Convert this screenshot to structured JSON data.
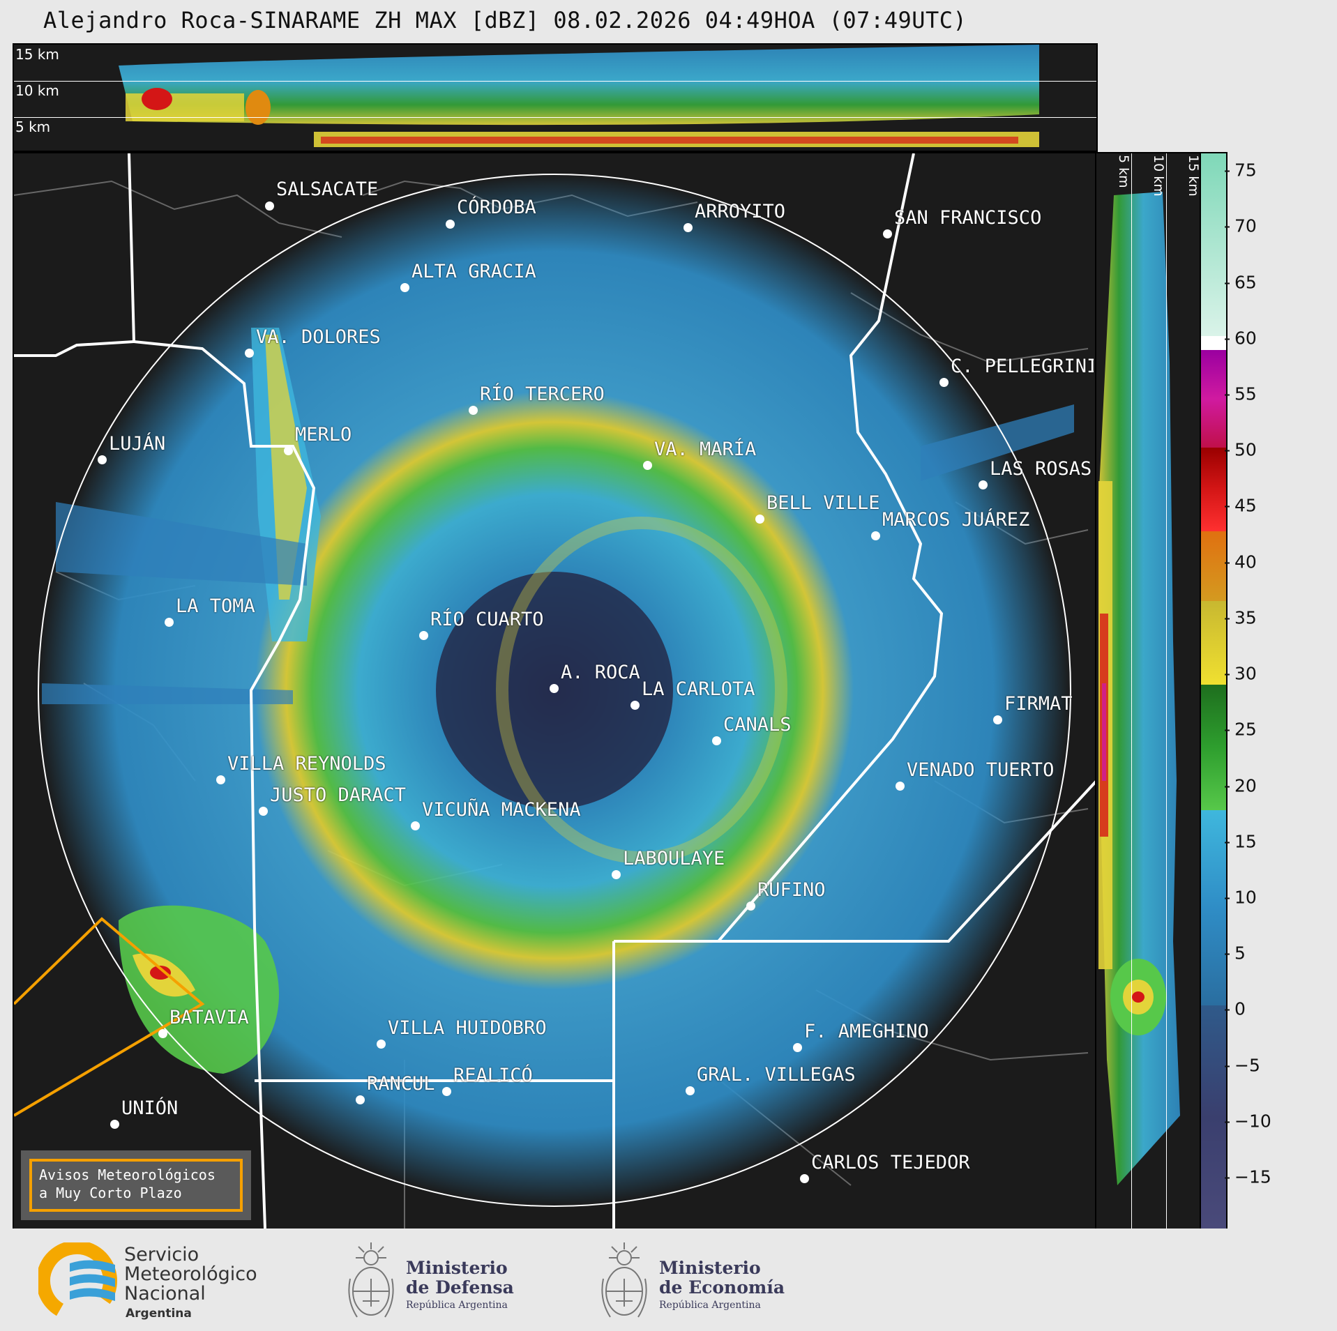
{
  "header": {
    "title": "Alejandro Roca-SINARAME ZH MAX [dBZ] 08.02.2026 04:49HOA (07:49UTC)"
  },
  "top_profile": {
    "altitudes": [
      "15 km",
      "10 km",
      "5 km"
    ]
  },
  "side_profile": {
    "altitudes": [
      "5 km",
      "10 km",
      "15 km"
    ]
  },
  "colorbar": {
    "ticks": [
      "75",
      "70",
      "65",
      "60",
      "55",
      "50",
      "45",
      "40",
      "35",
      "30",
      "25",
      "20",
      "15",
      "10",
      "5",
      "0",
      "−5",
      "−10",
      "−15"
    ],
    "unit": "dBZ",
    "range": [
      -20,
      77
    ],
    "colors": {
      "below_0": "#3a3f6e",
      "0_15": "#2f8dc6",
      "15_20": "#3fb7dd",
      "20_30": "#2e9e2e",
      "30_40": "#e3d43a",
      "40_45": "#e08a10",
      "45_50": "#d41616",
      "50_60": "#d01aa0",
      "60_65": "#ffffff",
      "65_77": "#8fe0c0"
    }
  },
  "cities": [
    {
      "name": "SALSACATE"
    },
    {
      "name": "CÓRDOBA"
    },
    {
      "name": "ARROYITO"
    },
    {
      "name": "SAN FRANCISCO"
    },
    {
      "name": "ALTA GRACIA"
    },
    {
      "name": "VA. DOLORES"
    },
    {
      "name": "C. PELLEGRINI"
    },
    {
      "name": "RÍO TERCERO"
    },
    {
      "name": "LUJÁN"
    },
    {
      "name": "MERLO"
    },
    {
      "name": "VA. MARÍA"
    },
    {
      "name": "LAS ROSAS"
    },
    {
      "name": "BELL VILLE"
    },
    {
      "name": "MARCOS JUÁREZ"
    },
    {
      "name": "LA TOMA"
    },
    {
      "name": "RÍO CUARTO"
    },
    {
      "name": "A. ROCA"
    },
    {
      "name": "LA CARLOTA"
    },
    {
      "name": "FIRMAT"
    },
    {
      "name": "CANALS"
    },
    {
      "name": "VILLA REYNOLDS"
    },
    {
      "name": "VENADO TUERTO"
    },
    {
      "name": "JUSTO DARACT"
    },
    {
      "name": "VICUÑA MACKENA"
    },
    {
      "name": "LABOULAYE"
    },
    {
      "name": "RUFINO"
    },
    {
      "name": "BATAVIA"
    },
    {
      "name": "VILLA HUIDOBRO"
    },
    {
      "name": "F. AMEGHINO"
    },
    {
      "name": "RANCUL"
    },
    {
      "name": "REALICÓ"
    },
    {
      "name": "GRAL. VILLEGAS"
    },
    {
      "name": "UNIÓN"
    },
    {
      "name": "CARLOS TEJEDOR"
    }
  ],
  "warning_box": {
    "line1": "Avisos Meteorológicos",
    "line2": "a Muy Corto Plazo"
  },
  "logos": {
    "smn": {
      "line1": "Servicio",
      "line2": "Meteorológico",
      "line3": "Nacional",
      "line4": "Argentina"
    },
    "defensa": {
      "line1": "Ministerio",
      "line2": "de Defensa",
      "line3": "República Argentina"
    },
    "economia": {
      "line1": "Ministerio",
      "line2": "de Economía",
      "line3": "República Argentina"
    }
  }
}
